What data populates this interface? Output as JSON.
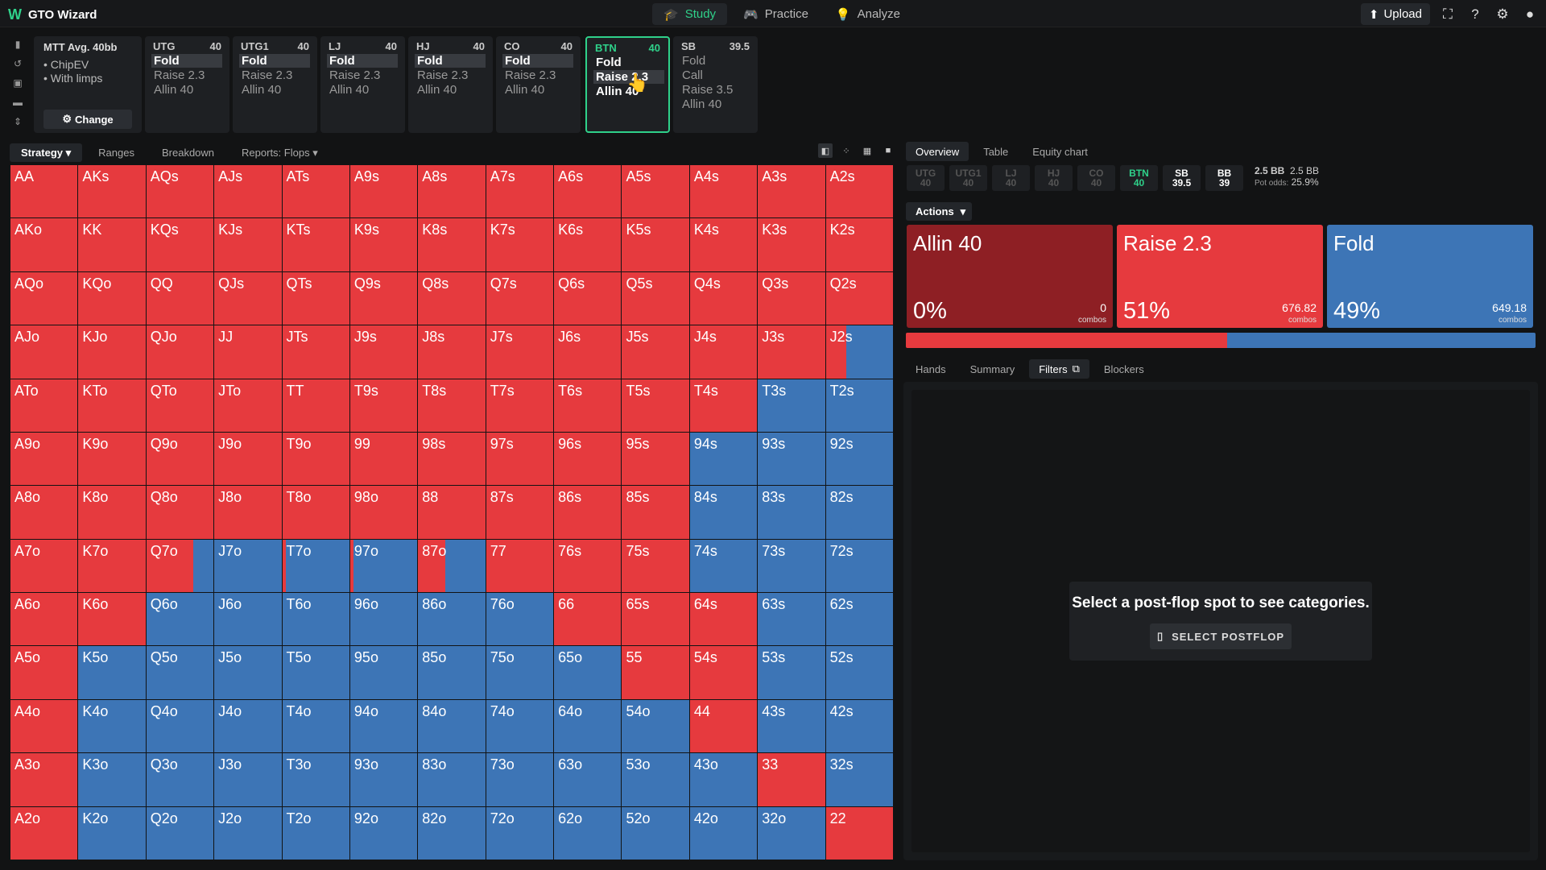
{
  "app": {
    "title": "GTO Wizard"
  },
  "nav": [
    {
      "label": "Study",
      "icon": "graduation-cap-icon"
    },
    {
      "label": "Practice",
      "icon": "gamepad-icon"
    },
    {
      "label": "Analyze",
      "icon": "bulb-icon"
    }
  ],
  "topright": {
    "upload_label": "Upload"
  },
  "settings": {
    "header": "MTT  Avg. 40bb",
    "opt1": "• ChipEV",
    "opt2": "• With limps",
    "change_label": "Change"
  },
  "positions": [
    {
      "name": "UTG",
      "stack": "40",
      "actions": [
        "Fold",
        "Raise 2.3",
        "Allin 40"
      ],
      "chosen": 0
    },
    {
      "name": "UTG1",
      "stack": "40",
      "actions": [
        "Fold",
        "Raise 2.3",
        "Allin 40"
      ],
      "chosen": 0
    },
    {
      "name": "LJ",
      "stack": "40",
      "actions": [
        "Fold",
        "Raise 2.3",
        "Allin 40"
      ],
      "chosen": 0
    },
    {
      "name": "HJ",
      "stack": "40",
      "actions": [
        "Fold",
        "Raise 2.3",
        "Allin 40"
      ],
      "chosen": 0
    },
    {
      "name": "CO",
      "stack": "40",
      "actions": [
        "Fold",
        "Raise 2.3",
        "Allin 40"
      ],
      "chosen": 0
    },
    {
      "name": "BTN",
      "stack": "40",
      "actions": [
        "Fold",
        "Raise 2.3",
        "Allin 40"
      ],
      "chosen": 1
    },
    {
      "name": "SB",
      "stack": "39.5",
      "actions": [
        "Fold",
        "Call",
        "Raise 3.5",
        "Allin 40"
      ],
      "chosen": -1
    }
  ],
  "left_tabs": [
    "Strategy",
    "Ranges",
    "Breakdown",
    "Reports: Flops"
  ],
  "grid": {
    "ranks": [
      "A",
      "K",
      "Q",
      "J",
      "T",
      "9",
      "8",
      "7",
      "6",
      "5",
      "4",
      "3",
      "2"
    ],
    "raise_color": "#e63a3e",
    "fold_color": "#3d75b6",
    "raise_fraction": [
      [
        1,
        1,
        1,
        1,
        1,
        1,
        1,
        1,
        1,
        1,
        1,
        1,
        1
      ],
      [
        1,
        1,
        1,
        1,
        1,
        1,
        1,
        1,
        1,
        1,
        1,
        1,
        1
      ],
      [
        1,
        1,
        1,
        1,
        1,
        1,
        1,
        1,
        1,
        1,
        1,
        1,
        1
      ],
      [
        1,
        1,
        1,
        1,
        1,
        1,
        1,
        1,
        1,
        1,
        1,
        1,
        0.3
      ],
      [
        1,
        1,
        1,
        1,
        1,
        1,
        1,
        1,
        1,
        1,
        1,
        0,
        0
      ],
      [
        1,
        1,
        1,
        1,
        1,
        1,
        1,
        1,
        1,
        1,
        0,
        0,
        0
      ],
      [
        1,
        1,
        1,
        1,
        1,
        1,
        1,
        1,
        1,
        1,
        0,
        0,
        0
      ],
      [
        1,
        1,
        0.7,
        0,
        0.05,
        0.05,
        0.4,
        1,
        1,
        1,
        0,
        0,
        0
      ],
      [
        1,
        1,
        0,
        0,
        0,
        0,
        0,
        0,
        1,
        1,
        1,
        0,
        0
      ],
      [
        1,
        0,
        0,
        0,
        0,
        0,
        0,
        0,
        0,
        1,
        1,
        0,
        0
      ],
      [
        1,
        0,
        0,
        0,
        0,
        0,
        0,
        0,
        0,
        0,
        1,
        0,
        0
      ],
      [
        1,
        0,
        0,
        0,
        0,
        0,
        0,
        0,
        0,
        0,
        0,
        1,
        0
      ],
      [
        1,
        0,
        0,
        0,
        0,
        0,
        0,
        0,
        0,
        0,
        0,
        0,
        1
      ]
    ]
  },
  "right_tabs": [
    "Overview",
    "Table",
    "Equity chart"
  ],
  "mini_positions": [
    {
      "name": "UTG",
      "stack": "40"
    },
    {
      "name": "UTG1",
      "stack": "40"
    },
    {
      "name": "LJ",
      "stack": "40"
    },
    {
      "name": "HJ",
      "stack": "40"
    },
    {
      "name": "CO",
      "stack": "40"
    },
    {
      "name": "BTN",
      "stack": "40"
    },
    {
      "name": "SB",
      "stack": "39.5"
    },
    {
      "name": "BB",
      "stack": "39"
    }
  ],
  "pot": {
    "pot": "2.5 BB",
    "to_call": "2.5 BB",
    "odds_label": "Pot odds:",
    "odds": "25.9%"
  },
  "actions_label": "Actions",
  "action_boxes": [
    {
      "name": "Allin 40",
      "pct": "0%",
      "combos": "0",
      "combos_label": "combos",
      "color": "#8e1f24"
    },
    {
      "name": "Raise 2.3",
      "pct": "51%",
      "combos": "676.82",
      "combos_label": "combos",
      "color": "#e63a3e"
    },
    {
      "name": "Fold",
      "pct": "49%",
      "combos": "649.18",
      "combos_label": "combos",
      "color": "#3d75b6"
    }
  ],
  "freq": {
    "raise": 0.51,
    "fold": 0.49
  },
  "bottom_tabs": [
    "Hands",
    "Summary",
    "Filters",
    "Blockers"
  ],
  "filters": {
    "message": "Select a post-flop spot to see categories.",
    "button": "SELECT POSTFLOP"
  }
}
